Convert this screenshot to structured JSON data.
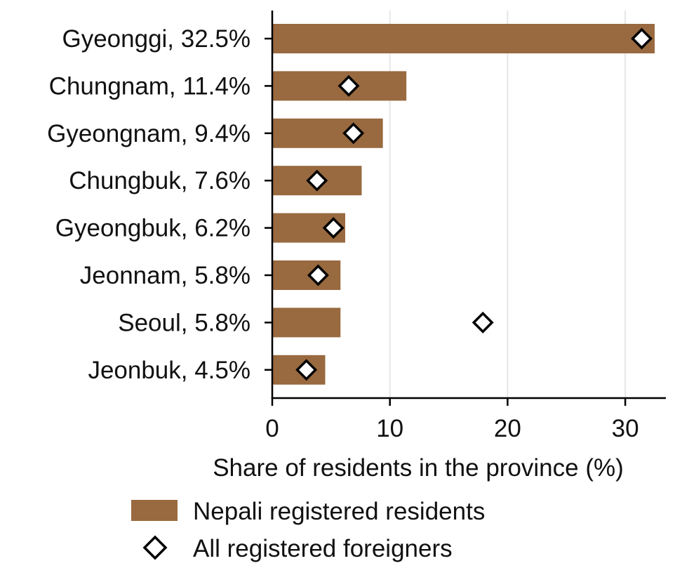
{
  "chart_data": {
    "type": "bar",
    "orientation": "horizontal",
    "categories": [
      "Gyeonggi, 32.5%",
      "Chungnam, 11.4%",
      "Gyeongnam, 9.4%",
      "Chungbuk, 7.6%",
      "Gyeongbuk, 6.2%",
      "Jeonnam, 5.8%",
      "Seoul, 5.8%",
      "Jeonbuk, 4.5%"
    ],
    "series": [
      {
        "name": "Nepali registered residents",
        "mark": "bar",
        "color": "#99693f",
        "values": [
          32.5,
          11.4,
          9.4,
          7.6,
          6.2,
          5.8,
          5.8,
          4.5
        ]
      },
      {
        "name": "All registered foreigners",
        "mark": "diamond",
        "color": "#ffffff",
        "values": [
          31.4,
          6.5,
          6.9,
          3.8,
          5.2,
          3.9,
          17.9,
          2.9
        ]
      }
    ],
    "xlabel": "Share of residents in the province (%)",
    "ylabel": "",
    "xlim": [
      0,
      33.5
    ],
    "xticks": [
      0,
      10,
      20,
      30
    ],
    "grid": "vertical",
    "legend_position": "bottom"
  }
}
